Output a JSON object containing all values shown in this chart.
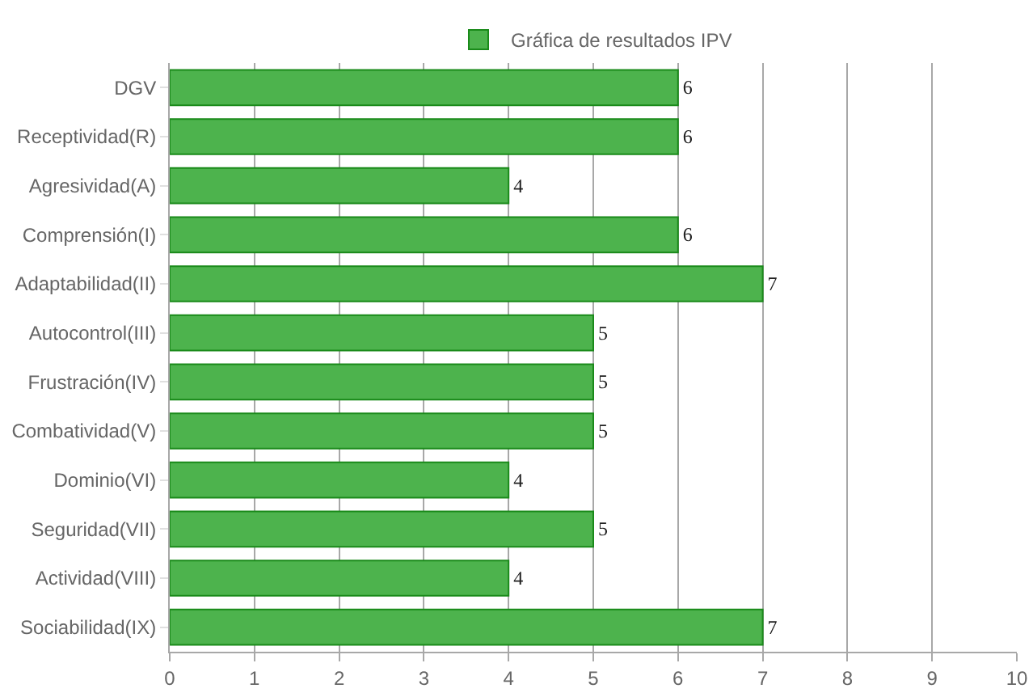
{
  "chart_data": {
    "type": "bar",
    "orientation": "horizontal",
    "categories": [
      "DGV",
      "Receptividad(R)",
      "Agresividad(A)",
      "Comprensión(I)",
      "Adaptabilidad(II)",
      "Autocontrol(III)",
      "Frustración(IV)",
      "Combatividad(V)",
      "Dominio(VI)",
      "Seguridad(VII)",
      "Actividad(VIII)",
      "Sociabilidad(IX)"
    ],
    "series": [
      {
        "name": "Gráfica de resultados IPV",
        "color": "#4db34d",
        "values": [
          6,
          6,
          4,
          6,
          7,
          5,
          5,
          5,
          4,
          5,
          4,
          7
        ]
      }
    ],
    "xlim": [
      0,
      10
    ],
    "xticks": [
      0,
      1,
      2,
      3,
      4,
      5,
      6,
      7,
      8,
      9,
      10
    ],
    "grid": "x",
    "legend": "top",
    "data_labels": true
  }
}
